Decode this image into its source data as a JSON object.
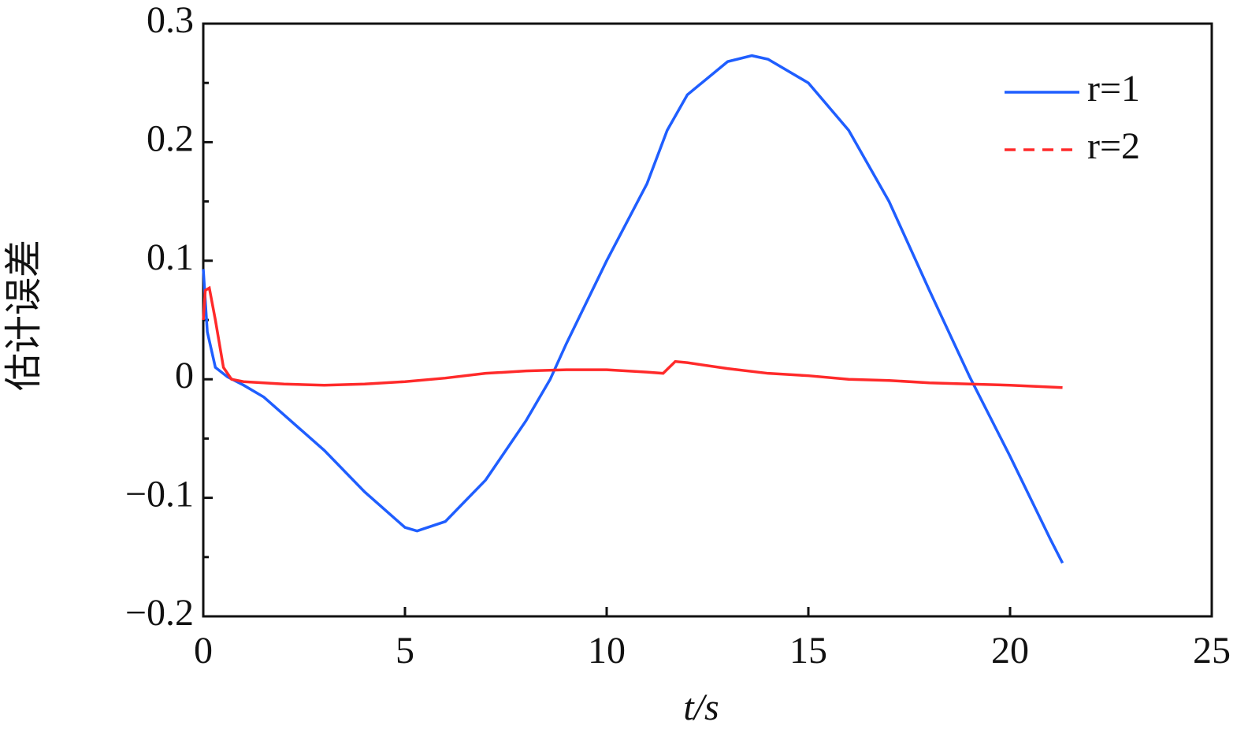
{
  "chart_data": {
    "type": "line",
    "xlabel": "t/s",
    "ylabel": "估计误差",
    "xlim": [
      0,
      25
    ],
    "xticks": [
      0,
      5,
      10,
      15,
      20,
      25
    ],
    "ylim": [
      -0.2,
      0.3
    ],
    "yticks": [
      {
        "value": -0.2,
        "label": "−0.2"
      },
      {
        "value": -0.1,
        "label": "−0.1"
      },
      0,
      0.1,
      0.2,
      0.3
    ],
    "yminorticks": [
      -0.15,
      -0.05,
      0.05,
      0.15,
      0.25
    ],
    "legend": "upper right",
    "series": [
      {
        "name": "r=1",
        "color": "#1f5eff",
        "legend_style": "solid",
        "x": [
          0,
          0.1,
          0.3,
          0.6,
          1,
          1.5,
          2,
          3,
          4,
          5,
          5.3,
          6,
          7,
          8,
          8.6,
          9,
          10,
          11,
          11.5,
          12,
          13,
          13.6,
          14,
          15,
          16,
          17,
          18,
          19,
          20,
          21,
          21.3
        ],
        "values": [
          0.093,
          0.04,
          0.01,
          0.002,
          -0.005,
          -0.015,
          -0.03,
          -0.06,
          -0.095,
          -0.125,
          -0.128,
          -0.12,
          -0.085,
          -0.035,
          0,
          0.03,
          0.1,
          0.165,
          0.21,
          0.24,
          0.268,
          0.273,
          0.27,
          0.25,
          0.21,
          0.15,
          0.075,
          0.002,
          -0.065,
          -0.135,
          -0.155
        ]
      },
      {
        "name": "r=2",
        "color": "#ff2a2a",
        "legend_style": "dashed",
        "x": [
          0,
          0.05,
          0.15,
          0.3,
          0.5,
          0.7,
          1,
          2,
          3,
          4,
          5,
          6,
          7,
          8,
          9,
          10,
          11,
          11.4,
          11.7,
          12,
          13,
          14,
          15,
          16,
          17,
          18,
          19,
          20,
          21.3
        ],
        "values": [
          0.05,
          0.075,
          0.077,
          0.05,
          0.01,
          0,
          -0.002,
          -0.004,
          -0.005,
          -0.004,
          -0.002,
          0.001,
          0.005,
          0.007,
          0.008,
          0.008,
          0.006,
          0.005,
          0.015,
          0.014,
          0.009,
          0.005,
          0.003,
          0,
          -0.001,
          -0.003,
          -0.004,
          -0.005,
          -0.007
        ]
      }
    ]
  }
}
